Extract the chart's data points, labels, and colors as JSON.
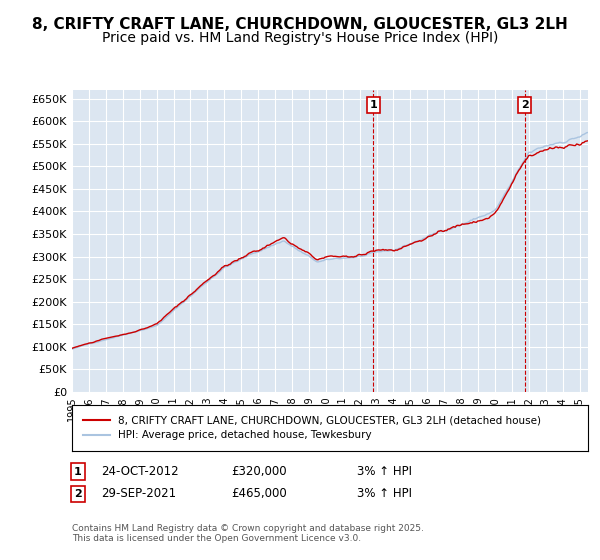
{
  "title": "8, CRIFTY CRAFT LANE, CHURCHDOWN, GLOUCESTER, GL3 2LH",
  "subtitle": "Price paid vs. HM Land Registry's House Price Index (HPI)",
  "ylabel_ticks": [
    "£0",
    "£50K",
    "£100K",
    "£150K",
    "£200K",
    "£250K",
    "£300K",
    "£350K",
    "£400K",
    "£450K",
    "£500K",
    "£550K",
    "£600K",
    "£650K"
  ],
  "ytick_vals": [
    0,
    50000,
    100000,
    150000,
    200000,
    250000,
    300000,
    350000,
    400000,
    450000,
    500000,
    550000,
    600000,
    650000
  ],
  "ylim": [
    0,
    670000
  ],
  "xlim_start": 1995,
  "xlim_end": 2025.5,
  "background_color": "#dce6f1",
  "grid_color": "#ffffff",
  "line1_color": "#cc0000",
  "line2_color": "#aac4e0",
  "legend_label1": "8, CRIFTY CRAFT LANE, CHURCHDOWN, GLOUCESTER, GL3 2LH (detached house)",
  "legend_label2": "HPI: Average price, detached house, Tewkesbury",
  "marker1_date": 2012.82,
  "marker1_label": "1",
  "marker2_date": 2021.75,
  "marker2_label": "2",
  "footer": "Contains HM Land Registry data © Crown copyright and database right 2025.\nThis data is licensed under the Open Government Licence v3.0.",
  "title_fontsize": 11,
  "subtitle_fontsize": 10
}
